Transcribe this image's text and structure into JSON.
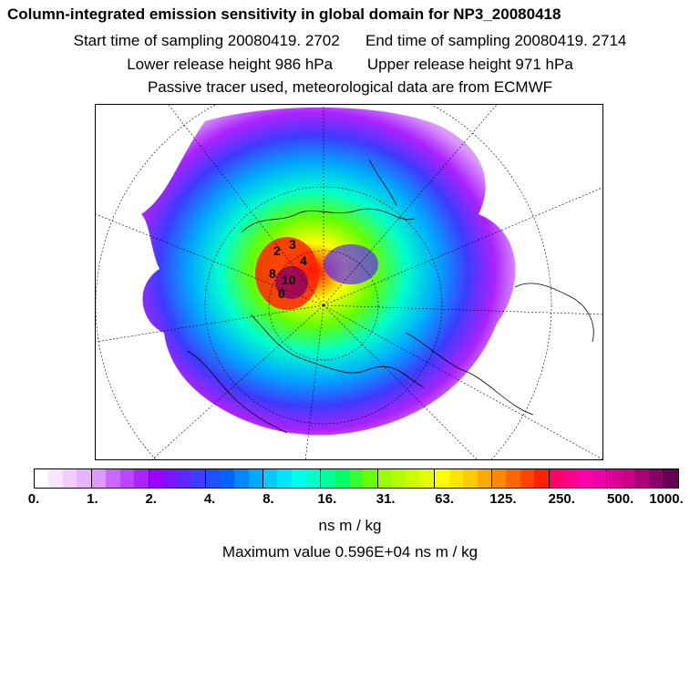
{
  "titles": {
    "main": "Column-integrated emission sensitivity in global domain for NP3_20080418",
    "start_label": "Start time of sampling 20080419.  2702",
    "end_label": "End time of sampling 20080419.  2714",
    "lower_release": "Lower release height  986 hPa",
    "upper_release": "Upper release height  971 hPa",
    "tracer": "Passive tracer used, meteorological data are from ECMWF"
  },
  "map": {
    "projection": "north-polar-stereographic",
    "labels": [
      "3",
      "4",
      "2",
      "8",
      "10",
      "0"
    ]
  },
  "colorbar": {
    "colors": [
      "#ffffff",
      "#f8e6ff",
      "#f0ccff",
      "#e8b3ff",
      "#dd99ff",
      "#cc66ff",
      "#bb44ff",
      "#aa22ff",
      "#9900ff",
      "#7a14ff",
      "#5c28ff",
      "#3d3cff",
      "#1f50ff",
      "#0064ff",
      "#0088ff",
      "#00aaff",
      "#00ccff",
      "#00e5ff",
      "#00ffee",
      "#00ffcc",
      "#00ff99",
      "#00ff66",
      "#33ff33",
      "#66ff00",
      "#99ff00",
      "#b3ff00",
      "#ccff00",
      "#e5ff00",
      "#ffff00",
      "#ffe500",
      "#ffcc00",
      "#ffaa00",
      "#ff8800",
      "#ff6600",
      "#ff4400",
      "#ff2200",
      "#ff0066",
      "#ff0088",
      "#ff00aa",
      "#ee00aa",
      "#dd0099",
      "#cc0088",
      "#aa0077",
      "#880066",
      "#660055"
    ],
    "tick_labels": [
      "0.",
      "1.",
      "2.",
      "4.",
      "8.",
      "16.",
      "31.",
      "63.",
      "125.",
      "250.",
      "500.",
      "1000."
    ],
    "unit": "ns m / kg"
  },
  "max_value_text": "Maximum value  0.596E+04 ns m / kg"
}
